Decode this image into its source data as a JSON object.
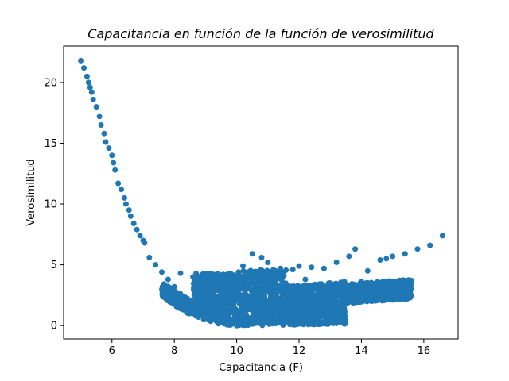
{
  "chart_data": {
    "type": "scatter",
    "title": "Capacitancia en función de la función de verosimilitud",
    "xlabel": "Capacitancia (F)",
    "ylabel": "Verosimilitud",
    "xlim": [
      4.45,
      17.1
    ],
    "ylim": [
      -1.1,
      23.0
    ],
    "xticks": [
      6,
      8,
      10,
      12,
      14,
      16
    ],
    "yticks": [
      0,
      5,
      10,
      15,
      20
    ],
    "xtick_labels": [
      "6",
      "8",
      "10",
      "12",
      "14",
      "16"
    ],
    "ytick_labels": [
      "0",
      "5",
      "10",
      "15",
      "20"
    ],
    "grid": false,
    "color": "#1f77b4",
    "series": [
      {
        "values": [
          [
            5.0,
            21.8
          ],
          [
            5.1,
            21.2
          ],
          [
            5.2,
            20.5
          ],
          [
            5.25,
            20.0
          ],
          [
            5.3,
            19.6
          ],
          [
            5.35,
            19.2
          ],
          [
            5.4,
            18.6
          ],
          [
            5.5,
            18.0
          ],
          [
            5.6,
            17.2
          ],
          [
            5.65,
            16.5
          ],
          [
            5.75,
            15.8
          ],
          [
            5.8,
            15.1
          ],
          [
            5.9,
            14.6
          ],
          [
            6.0,
            14.0
          ],
          [
            6.05,
            13.4
          ],
          [
            6.1,
            12.8
          ],
          [
            6.2,
            11.7
          ],
          [
            6.3,
            11.2
          ],
          [
            6.4,
            10.5
          ],
          [
            6.45,
            10.0
          ],
          [
            6.55,
            9.5
          ],
          [
            6.6,
            9.0
          ],
          [
            6.7,
            8.4
          ],
          [
            6.8,
            7.9
          ],
          [
            6.9,
            7.4
          ],
          [
            7.0,
            7.0
          ],
          [
            7.05,
            6.8
          ],
          [
            7.2,
            5.6
          ],
          [
            7.4,
            5.0
          ],
          [
            7.6,
            4.4
          ],
          [
            7.8,
            3.8
          ],
          [
            8.0,
            3.2
          ],
          [
            8.2,
            2.6
          ],
          [
            8.4,
            2.1
          ],
          [
            8.6,
            1.6
          ],
          [
            8.8,
            1.2
          ],
          [
            9.0,
            0.8
          ],
          [
            9.2,
            0.5
          ],
          [
            9.4,
            0.3
          ],
          [
            9.6,
            0.15
          ],
          [
            9.8,
            0.05
          ],
          [
            10.0,
            0.0
          ],
          [
            10.2,
            0.05
          ],
          [
            10.4,
            0.1
          ],
          [
            10.6,
            0.2
          ],
          [
            10.8,
            0.3
          ],
          [
            11.0,
            0.4
          ],
          [
            11.5,
            0.7
          ],
          [
            12.0,
            1.0
          ],
          [
            12.5,
            1.3
          ],
          [
            13.0,
            1.6
          ],
          [
            13.5,
            1.9
          ],
          [
            14.0,
            2.1
          ],
          [
            14.5,
            2.4
          ],
          [
            15.0,
            2.7
          ],
          [
            15.5,
            3.0
          ],
          [
            8.2,
            4.3
          ],
          [
            8.6,
            4.0
          ],
          [
            9.0,
            4.2
          ],
          [
            9.4,
            4.1
          ],
          [
            9.8,
            4.3
          ],
          [
            10.2,
            4.9
          ],
          [
            10.5,
            5.9
          ],
          [
            10.8,
            5.6
          ],
          [
            11.0,
            5.2
          ],
          [
            11.4,
            4.7
          ],
          [
            11.8,
            4.6
          ],
          [
            12.0,
            4.9
          ],
          [
            12.4,
            4.8
          ],
          [
            12.8,
            4.7
          ],
          [
            13.2,
            5.2
          ],
          [
            13.6,
            5.7
          ],
          [
            13.8,
            6.3
          ],
          [
            14.2,
            4.5
          ],
          [
            14.6,
            5.4
          ],
          [
            14.8,
            5.5
          ],
          [
            15.0,
            5.7
          ],
          [
            15.4,
            5.9
          ],
          [
            15.8,
            6.3
          ],
          [
            16.2,
            6.6
          ],
          [
            16.6,
            7.4
          ],
          [
            15.6,
            3.4
          ],
          [
            10.6,
            3.5
          ],
          [
            11.2,
            3.2
          ],
          [
            12.2,
            3.8
          ],
          [
            13.0,
            3.5
          ],
          [
            14.0,
            3.6
          ],
          [
            9.6,
            3.0
          ],
          [
            10.0,
            2.5
          ],
          [
            11.6,
            2.6
          ]
        ]
      }
    ]
  }
}
